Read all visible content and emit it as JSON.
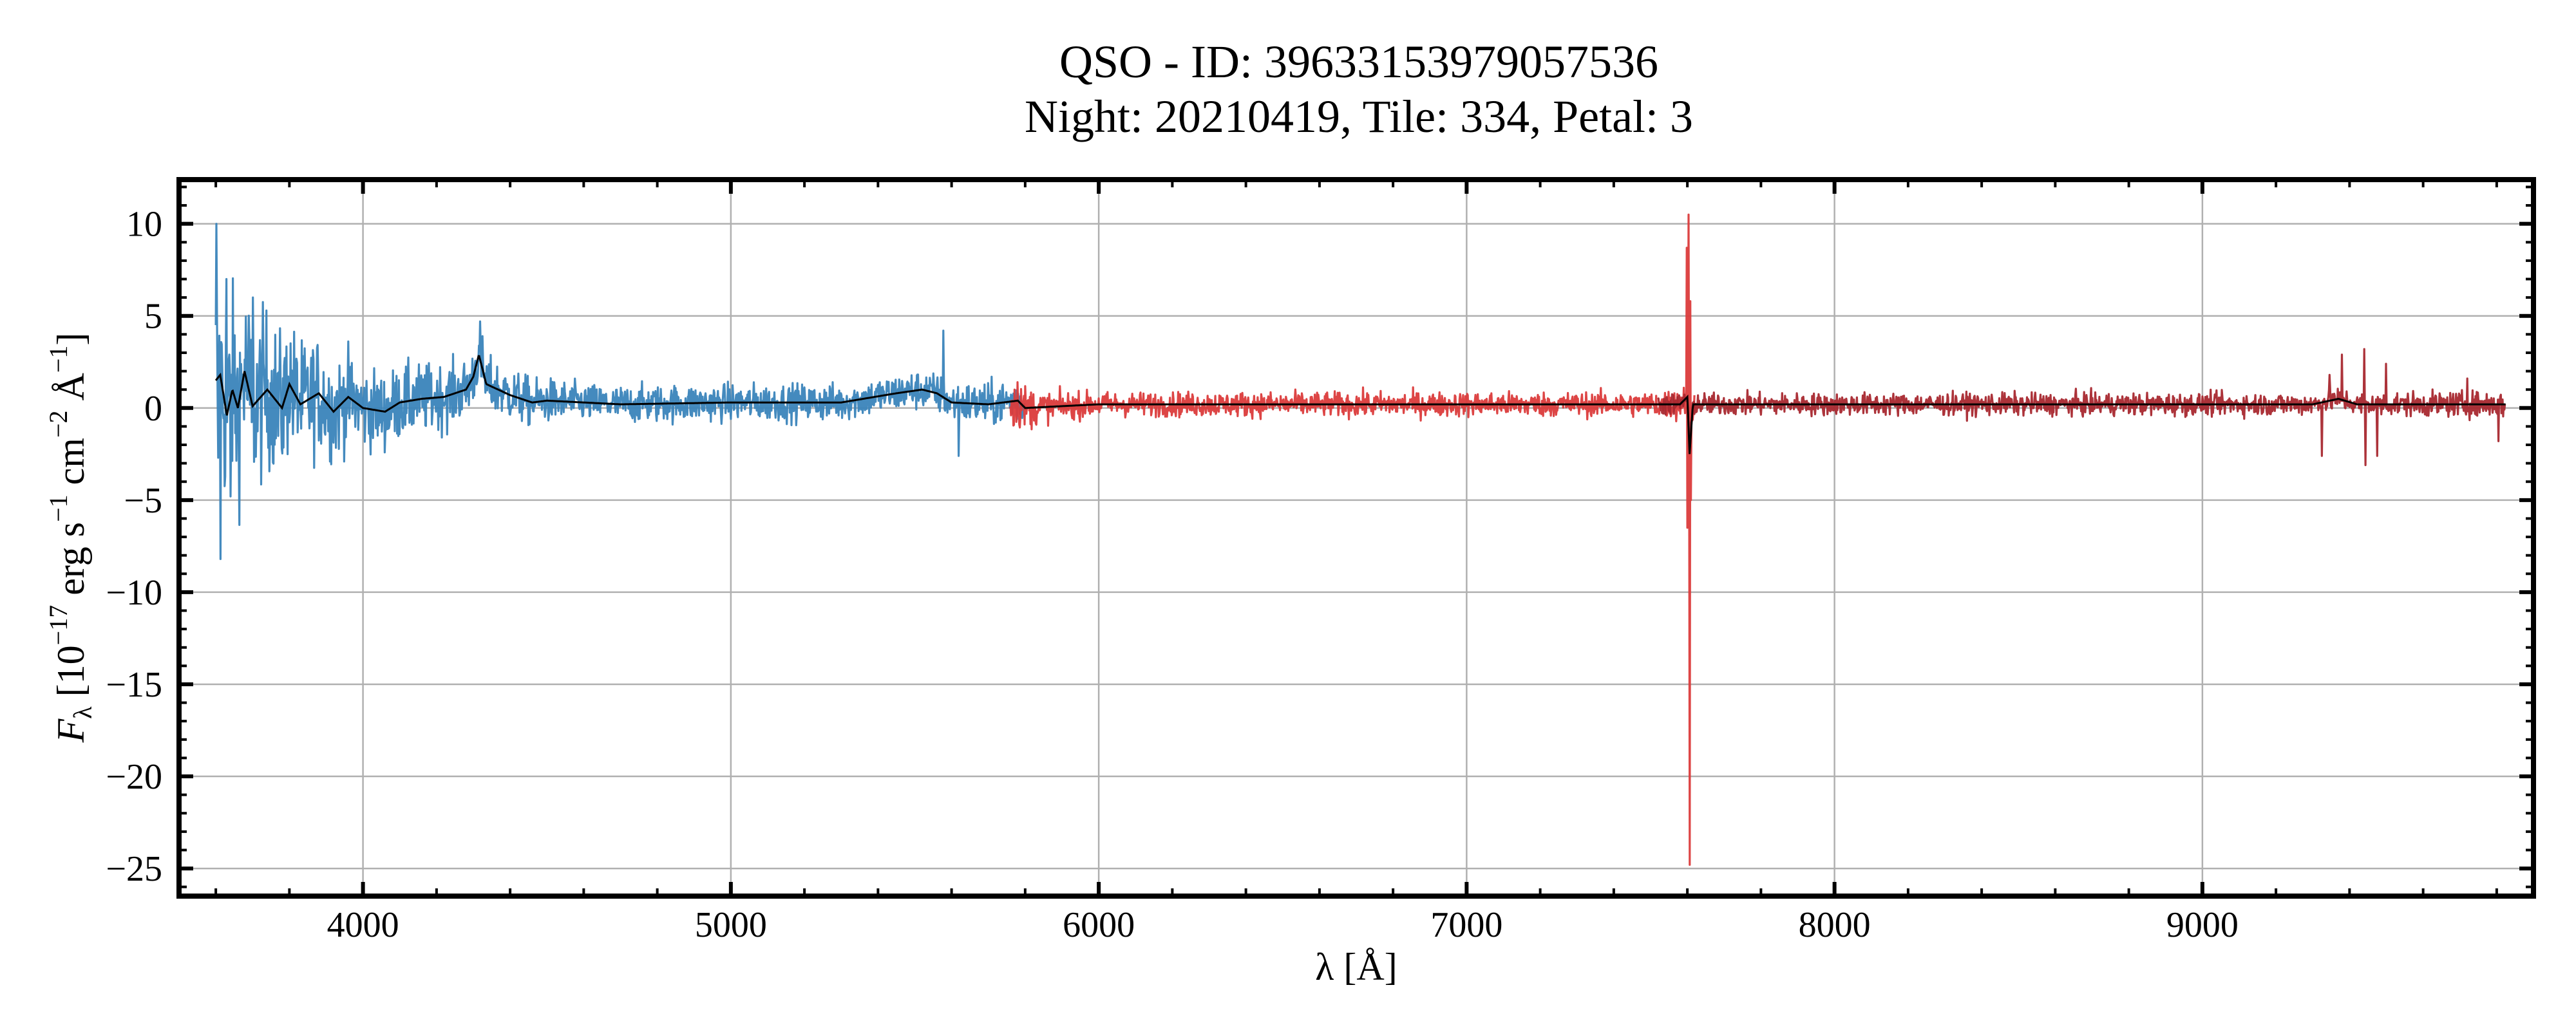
{
  "chart_data": {
    "type": "line",
    "title": "QSO - ID: 39633153979057536",
    "subtitle": "Night: 20210419, Tile: 334, Petal: 3",
    "xlabel": "λ [Å]",
    "ylabel": "F_λ [10^-17 erg s^-1 cm^-2 Å^-1]",
    "ylabel_parts": {
      "main": "F",
      "sub": "λ",
      "open": " [10",
      "exp1": "−17",
      "erg": " erg s",
      "exp2": "−1",
      "cm": " cm",
      "exp3": "−2",
      "ang": " Å",
      "exp4": "−1",
      "close": "]"
    },
    "xlim": [
      3500,
      9900
    ],
    "ylim": [
      -26.5,
      12.4
    ],
    "xticks": [
      4000,
      5000,
      6000,
      7000,
      8000,
      9000
    ],
    "xtick_labels": [
      "4000",
      "5000",
      "6000",
      "7000",
      "8000",
      "9000"
    ],
    "yticks": [
      10,
      5,
      0,
      -5,
      -10,
      -15,
      -20,
      -25
    ],
    "ytick_labels": [
      "10",
      "5",
      "0",
      "−5",
      "−10",
      "−15",
      "−20",
      "−25"
    ],
    "x_minor_step": 200,
    "y_minor_step": 1,
    "grid": true,
    "legend": "none",
    "series": [
      {
        "arm": "b",
        "color": "#3a84bb",
        "range": [
          3600,
          5800
        ],
        "noise_sigma": [
          [
            3600,
            3.0
          ],
          [
            3800,
            1.8
          ],
          [
            4000,
            1.1
          ],
          [
            4400,
            0.7
          ],
          [
            4600,
            0.5
          ],
          [
            5400,
            0.5
          ],
          [
            5800,
            0.6
          ]
        ],
        "spikes": [
          [
            3601,
            10.0
          ],
          [
            3606,
            -2.7
          ],
          [
            3612,
            -8.2
          ],
          [
            3628,
            7.0
          ],
          [
            3640,
            -4.8
          ],
          [
            3700,
            6.0
          ],
          [
            4318,
            4.7
          ],
          [
            4325,
            3.9
          ],
          [
            5578,
            4.2
          ],
          [
            5620,
            -2.6
          ]
        ]
      },
      {
        "arm": "r",
        "color": "#db3b3b",
        "range": [
          5760,
          7620
        ],
        "noise_sigma": [
          [
            5760,
            0.8
          ],
          [
            5850,
            0.4
          ],
          [
            6000,
            0.33
          ],
          [
            7500,
            0.33
          ],
          [
            7620,
            0.5
          ]
        ],
        "spikes": [
          [
            7598,
            8.7
          ],
          [
            7600,
            -6.5
          ],
          [
            7604,
            10.5
          ],
          [
            7606,
            -24.8
          ],
          [
            7608,
            5.8
          ],
          [
            7610,
            -5.0
          ]
        ]
      },
      {
        "arm": "z",
        "color": "#a8282f",
        "range": [
          7520,
          9824
        ],
        "noise_sigma": [
          [
            7520,
            0.3
          ],
          [
            9300,
            0.3
          ],
          [
            9824,
            0.35
          ]
        ],
        "spikes": [
          [
            9325,
            -2.6
          ],
          [
            9345,
            1.8
          ],
          [
            9380,
            2.9
          ],
          [
            9440,
            3.2
          ],
          [
            9443,
            -3.1
          ],
          [
            9475,
            -2.6
          ],
          [
            9500,
            2.4
          ],
          [
            9720,
            1.6
          ],
          [
            9805,
            -1.8
          ]
        ]
      }
    ],
    "model": {
      "color": "#000000",
      "points": [
        [
          3600,
          1.5
        ],
        [
          3612,
          1.8
        ],
        [
          3630,
          -0.4
        ],
        [
          3645,
          1.0
        ],
        [
          3660,
          0.0
        ],
        [
          3678,
          2.0
        ],
        [
          3700,
          0.1
        ],
        [
          3740,
          1.0
        ],
        [
          3780,
          0.0
        ],
        [
          3800,
          1.3
        ],
        [
          3830,
          0.2
        ],
        [
          3880,
          0.8
        ],
        [
          3920,
          -0.2
        ],
        [
          3960,
          0.6
        ],
        [
          4000,
          0.0
        ],
        [
          4060,
          -0.2
        ],
        [
          4100,
          0.3
        ],
        [
          4160,
          0.5
        ],
        [
          4220,
          0.6
        ],
        [
          4280,
          1.0
        ],
        [
          4300,
          1.7
        ],
        [
          4315,
          2.9
        ],
        [
          4335,
          1.3
        ],
        [
          4400,
          0.7
        ],
        [
          4460,
          0.3
        ],
        [
          4500,
          0.4
        ],
        [
          4700,
          0.2
        ],
        [
          5000,
          0.3
        ],
        [
          5300,
          0.3
        ],
        [
          5450,
          0.8
        ],
        [
          5520,
          1.0
        ],
        [
          5560,
          0.8
        ],
        [
          5600,
          0.3
        ],
        [
          5700,
          0.2
        ],
        [
          5780,
          0.4
        ],
        [
          5800,
          0.0
        ],
        [
          6000,
          0.2
        ],
        [
          7580,
          0.2
        ],
        [
          7600,
          0.6
        ],
        [
          7606,
          -2.5
        ],
        [
          7615,
          0.2
        ],
        [
          9300,
          0.2
        ],
        [
          9370,
          0.5
        ],
        [
          9420,
          0.2
        ],
        [
          9824,
          0.2
        ]
      ]
    }
  }
}
